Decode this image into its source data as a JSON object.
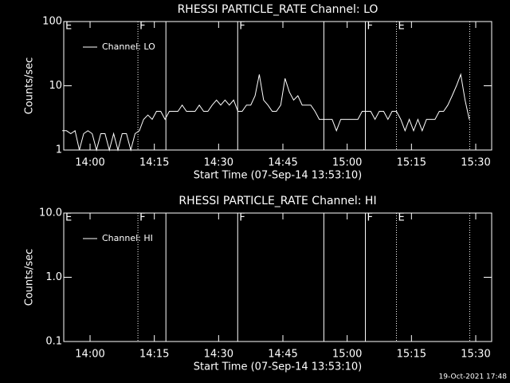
{
  "chart_data": [
    {
      "type": "line",
      "title": "RHESSI PARTICLE_RATE Channel: LO",
      "xlabel": "Start Time (07-Sep-14 13:53:10)",
      "ylabel": "Counts/sec",
      "log_y": true,
      "ylim": [
        1,
        100
      ],
      "yticks": [
        1,
        10,
        100
      ],
      "xlim": [
        833.86,
        933.72
      ],
      "xticks": [
        {
          "value": 840,
          "label": "14:00"
        },
        {
          "value": 855,
          "label": "14:15"
        },
        {
          "value": 870,
          "label": "14:30"
        },
        {
          "value": 885,
          "label": "14:45"
        },
        {
          "value": 900,
          "label": "15:00"
        },
        {
          "value": 915,
          "label": "15:15"
        },
        {
          "value": 930,
          "label": "15:30"
        }
      ],
      "legend": "upper left",
      "events": [
        {
          "x": 833.86,
          "style": "solid",
          "label": "E"
        },
        {
          "x": 851.17,
          "style": "dotted",
          "label": "F"
        },
        {
          "x": 857.7,
          "style": "solid"
        },
        {
          "x": 874.45,
          "style": "solid",
          "label": "F"
        },
        {
          "x": 894.56,
          "style": "solid"
        },
        {
          "x": 904.25,
          "style": "solid",
          "label": "F"
        },
        {
          "x": 911.5,
          "style": "dotted",
          "label": "E"
        },
        {
          "x": 928.6,
          "style": "dotted"
        }
      ],
      "series": [
        {
          "name": "Channel: LO",
          "color": "#ffffff",
          "x": [
            833.5,
            834.5,
            835.5,
            836.5,
            837.5,
            838.5,
            839.5,
            840.5,
            841.5,
            842.5,
            843.5,
            844.5,
            845.5,
            846.5,
            847.5,
            848.5,
            849.5,
            850.5,
            851.5,
            852.5,
            853.5,
            854.5,
            855.5,
            856.5,
            857.5,
            858.5,
            859.5,
            860.5,
            861.5,
            862.5,
            863.5,
            864.5,
            865.5,
            866.5,
            867.5,
            868.5,
            869.5,
            870.5,
            871.5,
            872.5,
            873.5,
            874.5,
            875.5,
            876.5,
            877.5,
            878.5,
            879.5,
            880.5,
            881.5,
            882.5,
            883.5,
            884.5,
            885.5,
            886.5,
            887.5,
            888.5,
            889.5,
            890.5,
            891.5,
            892.5,
            893.5,
            894.5,
            895.5,
            896.5,
            897.5,
            898.5,
            899.5,
            900.5,
            901.5,
            902.5,
            903.5,
            904.5,
            905.5,
            906.5,
            907.5,
            908.5,
            909.5,
            910.5,
            911.5,
            912.5,
            913.5,
            914.5,
            915.5,
            916.5,
            917.5,
            918.5,
            919.5,
            920.5,
            921.5,
            922.5,
            923.5,
            924.5,
            925.5,
            926.5,
            927.5,
            928.5
          ],
          "values": [
            2,
            2,
            1.8,
            2,
            1,
            1.8,
            2,
            1.8,
            1,
            1.8,
            1.8,
            1,
            1.8,
            1,
            1.8,
            1.8,
            1,
            1.8,
            2,
            3,
            3.5,
            3,
            4,
            4,
            3,
            4,
            4,
            4,
            5,
            4,
            4,
            4,
            5,
            4,
            4,
            5,
            6,
            5,
            6,
            5,
            6,
            4,
            4,
            5,
            5,
            7,
            15,
            6,
            5,
            4,
            4,
            5,
            13,
            8,
            6,
            7,
            5,
            5,
            5,
            4,
            3,
            3,
            3,
            3,
            2,
            3,
            3,
            3,
            3,
            3,
            4,
            4,
            4,
            3,
            4,
            4,
            3,
            4,
            4,
            3,
            2,
            3,
            2,
            3,
            2,
            3,
            3,
            3,
            4,
            4,
            5,
            7,
            10,
            15,
            6,
            3
          ]
        }
      ]
    },
    {
      "type": "line",
      "title": "RHESSI PARTICLE_RATE Channel: HI",
      "xlabel": "Start Time (07-Sep-14 13:53:10)",
      "ylabel": "Counts/sec",
      "log_y": true,
      "ylim": [
        0.1,
        10
      ],
      "yticks": [
        0.1,
        {
          "value": 1,
          "label": "1.0"
        },
        {
          "value": 10,
          "label": "10.0"
        }
      ],
      "xlim": [
        833.86,
        933.72
      ],
      "xticks": [
        {
          "value": 840,
          "label": "14:00"
        },
        {
          "value": 855,
          "label": "14:15"
        },
        {
          "value": 870,
          "label": "14:30"
        },
        {
          "value": 885,
          "label": "14:45"
        },
        {
          "value": 900,
          "label": "15:00"
        },
        {
          "value": 915,
          "label": "15:15"
        },
        {
          "value": 930,
          "label": "15:30"
        }
      ],
      "legend": "upper left",
      "events": [
        {
          "x": 833.86,
          "style": "solid",
          "label": "E"
        },
        {
          "x": 851.17,
          "style": "dotted",
          "label": "F"
        },
        {
          "x": 857.7,
          "style": "solid"
        },
        {
          "x": 874.45,
          "style": "solid",
          "label": "F"
        },
        {
          "x": 894.56,
          "style": "solid"
        },
        {
          "x": 904.25,
          "style": "solid",
          "label": "F"
        },
        {
          "x": 911.5,
          "style": "dotted",
          "label": "E"
        },
        {
          "x": 928.6,
          "style": "dotted"
        }
      ],
      "series": [
        {
          "name": "Channel: HI",
          "color": "#ffffff",
          "x": [],
          "values": []
        }
      ]
    }
  ],
  "footer": "19-Oct-2021 17:48"
}
